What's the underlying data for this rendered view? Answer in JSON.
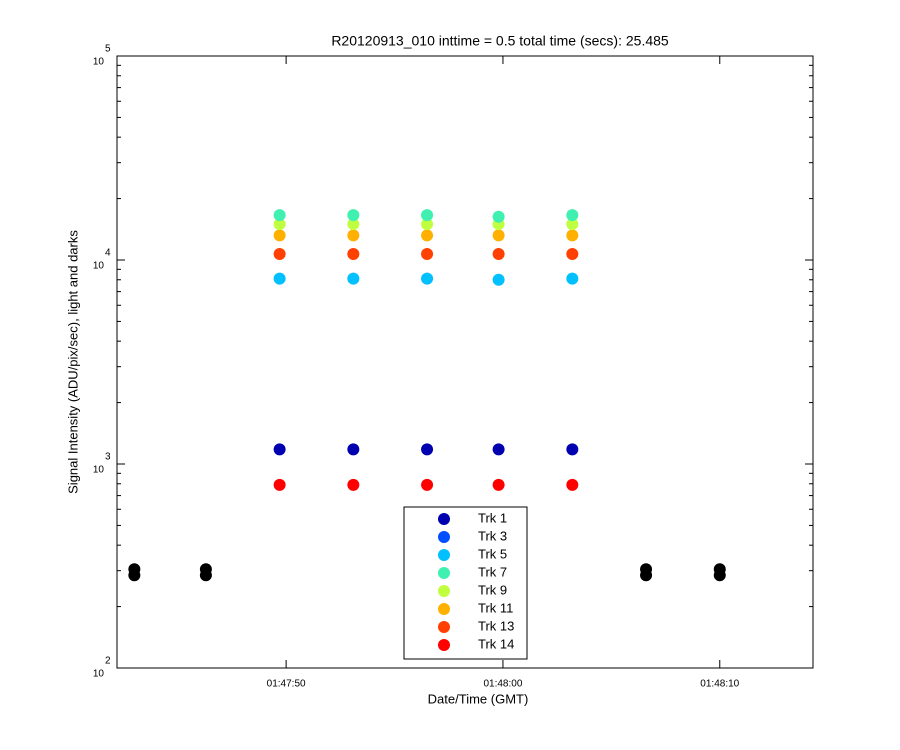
{
  "chart_data": {
    "type": "scatter",
    "title": "R20120913_010 inttime = 0.5 total time (secs): 25.485",
    "xlabel": "Date/Time (GMT)",
    "ylabel": "Signal Intensity (ADU/pix/sec), light and darks",
    "log_y": true,
    "xlim": [
      "01:47:42.2",
      "01:48:14.3"
    ],
    "xticks": [
      "01:47:50",
      "01:48:00",
      "01:48:10"
    ],
    "ylim": [
      100,
      100000
    ],
    "yticks": [
      {
        "value": 100,
        "label": "10",
        "exponent": "2"
      },
      {
        "value": 1000,
        "label": "10",
        "exponent": "3"
      },
      {
        "value": 10000,
        "label": "10",
        "exponent": "4"
      },
      {
        "value": 100000,
        "label": "10",
        "exponent": "5"
      }
    ],
    "x": [
      "01:47:49.7",
      "01:47:53.1",
      "01:47:56.5",
      "01:47:59.8",
      "01:48:03.2"
    ],
    "series": [
      {
        "name": "Trk 1",
        "color": "#0000b0",
        "values": [
          1180,
          1180,
          1180,
          1180,
          1180
        ]
      },
      {
        "name": "Trk 3",
        "color": "#0050ff",
        "values": [
          null,
          null,
          null,
          null,
          null
        ]
      },
      {
        "name": "Trk 5",
        "color": "#00c0ff",
        "values": [
          8100,
          8100,
          8100,
          8000,
          8100
        ]
      },
      {
        "name": "Trk 13",
        "color": "#ff4000",
        "values": [
          10700,
          10700,
          10700,
          10700,
          10700
        ]
      },
      {
        "name": "Trk 11",
        "color": "#ffb000",
        "values": [
          13200,
          13200,
          13200,
          13200,
          13200
        ]
      },
      {
        "name": "Trk 9",
        "color": "#c0ff40",
        "values": [
          15000,
          15000,
          15000,
          15000,
          15000
        ]
      },
      {
        "name": "Trk 7",
        "color": "#40f0b0",
        "values": [
          16600,
          16600,
          16600,
          16300,
          16600
        ]
      },
      {
        "name": "Trk 14",
        "color": "#ff0000",
        "values": [
          790,
          790,
          790,
          790,
          790
        ]
      }
    ],
    "legend_order": [
      0,
      1,
      2,
      6,
      5,
      4,
      3,
      7
    ],
    "darks": {
      "color": "#000000",
      "x": [
        "01:47:43.0",
        "01:47:43.0",
        "01:47:46.3",
        "01:47:46.3",
        "01:48:06.6",
        "01:48:06.6",
        "01:48:10.0",
        "01:48:10.0"
      ],
      "values": [
        285,
        305,
        285,
        305,
        285,
        305,
        285,
        305
      ]
    },
    "legend_position": "bottom"
  }
}
